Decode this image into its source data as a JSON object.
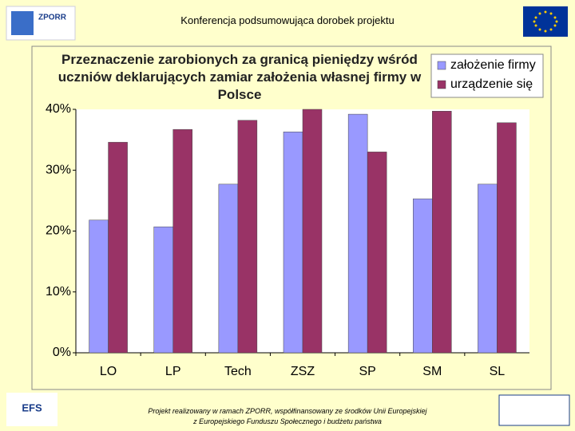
{
  "header": {
    "title": "Konferencja podsumowująca dorobek projektu"
  },
  "logos": {
    "zporr": "ZPORR",
    "efs": "EFS"
  },
  "footer": {
    "lines": [
      "Projekt realizowany w ramach ZPORR, współfinansowany ze środków Unii Europejskiej",
      "z Europejskiego Funduszu Społecznego i budżetu państwa"
    ]
  },
  "chart_data": {
    "type": "bar",
    "title": "Przeznaczenie zarobionych za granicą pieniędzy wśród uczniów deklarujących zamiar założenia własnej firmy w Polsce",
    "categories": [
      "LO",
      "LP",
      "Tech",
      "ZSZ",
      "SP",
      "SM",
      "SL"
    ],
    "series": [
      {
        "name": "założenie firmy",
        "color": "#9999ff",
        "values": [
          21.8,
          20.7,
          27.7,
          36.3,
          39.2,
          25.3,
          27.7
        ]
      },
      {
        "name": "urządzenie się",
        "color": "#993366",
        "values": [
          34.6,
          36.7,
          38.2,
          40.0,
          33.0,
          39.7,
          37.8
        ]
      }
    ],
    "ylim": [
      0,
      40
    ],
    "yticks": [
      {
        "value": 0,
        "label": "0%"
      },
      {
        "value": 10,
        "label": "10%"
      },
      {
        "value": 20,
        "label": "20%"
      },
      {
        "value": 30,
        "label": "30%"
      },
      {
        "value": 40,
        "label": "40%"
      }
    ],
    "legend": "top-right"
  }
}
